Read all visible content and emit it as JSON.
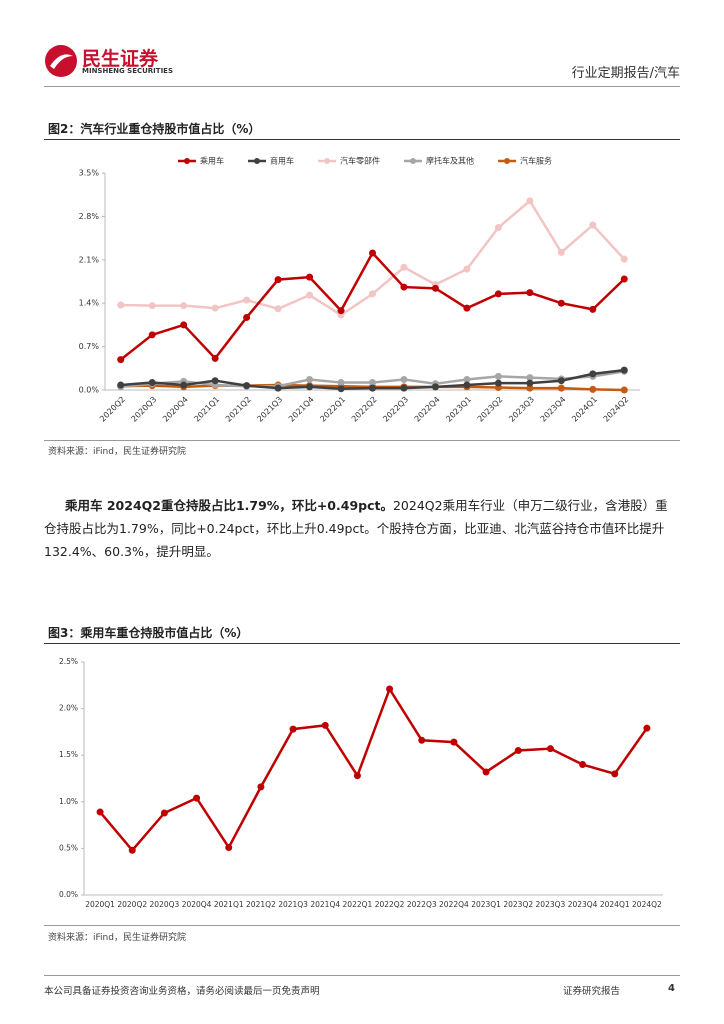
{
  "header": {
    "brand": "民生证券",
    "brand_en": "MINSHENG SECURITIES",
    "report_type": "行业定期报告/汽车"
  },
  "chart_data": [
    {
      "type": "line",
      "title": "图2：汽车行业重仓持股市值占比（%）",
      "source": "资料来源：iFind，民生证券研究院",
      "categories": [
        "2020Q2",
        "2020Q3",
        "2020Q4",
        "2021Q1",
        "2021Q2",
        "2021Q3",
        "2021Q4",
        "2022Q1",
        "2022Q2",
        "2022Q3",
        "2022Q4",
        "2023Q1",
        "2023Q2",
        "2023Q3",
        "2023Q4",
        "2024Q1",
        "2024Q2"
      ],
      "series": [
        {
          "name": "乘用车",
          "color": "#c00000",
          "values": [
            0.49,
            0.89,
            1.05,
            0.51,
            1.17,
            1.78,
            1.82,
            1.28,
            2.21,
            1.66,
            1.64,
            1.32,
            1.55,
            1.57,
            1.4,
            1.3,
            1.79
          ]
        },
        {
          "name": "商用车",
          "color": "#404040",
          "values": [
            0.08,
            0.12,
            0.08,
            0.15,
            0.07,
            0.03,
            0.05,
            0.02,
            0.03,
            0.03,
            0.05,
            0.08,
            0.11,
            0.11,
            0.15,
            0.26,
            0.32
          ]
        },
        {
          "name": "汽车零部件",
          "color": "#f2c4c4",
          "values": [
            1.37,
            1.36,
            1.36,
            1.32,
            1.45,
            1.31,
            1.53,
            1.21,
            1.55,
            1.98,
            1.7,
            1.95,
            2.62,
            3.05,
            2.22,
            2.66,
            2.11
          ]
        },
        {
          "name": "摩托车及其他",
          "color": "#a6a6a6",
          "values": [
            0.05,
            0.1,
            0.14,
            0.08,
            0.06,
            0.06,
            0.17,
            0.12,
            0.12,
            0.17,
            0.1,
            0.17,
            0.22,
            0.2,
            0.18,
            0.22,
            0.3
          ]
        },
        {
          "name": "汽车服务",
          "color": "#c55a11",
          "values": [
            0.06,
            0.07,
            0.05,
            0.07,
            0.07,
            0.08,
            0.07,
            0.06,
            0.05,
            0.05,
            0.05,
            0.05,
            0.04,
            0.03,
            0.03,
            0.01,
            0.0
          ]
        }
      ],
      "ylim": [
        0,
        3.5
      ],
      "yticks": [
        {
          "value": 0,
          "label": "0.0%"
        },
        {
          "value": 0.7,
          "label": "0.7%"
        },
        {
          "value": 1.4,
          "label": "1.4%"
        },
        {
          "value": 2.1,
          "label": "2.1%"
        },
        {
          "value": 2.8,
          "label": "2.8%"
        },
        {
          "value": 3.5,
          "label": "3.5%"
        }
      ],
      "grid": false,
      "legend": "top"
    },
    {
      "type": "line",
      "title": "图3：乘用车重仓持股市值占比（%）",
      "source": "资料来源：iFind，民生证券研究院",
      "categories": [
        "2020Q1",
        "2020Q2",
        "2020Q3",
        "2020Q4",
        "2021Q1",
        "2021Q2",
        "2021Q3",
        "2021Q4",
        "2022Q1",
        "2022Q2",
        "2022Q3",
        "2022Q4",
        "2023Q1",
        "2023Q2",
        "2023Q3",
        "2023Q4",
        "2024Q1",
        "2024Q2"
      ],
      "values": [
        0.89,
        0.48,
        0.88,
        1.04,
        0.51,
        1.16,
        1.78,
        1.82,
        1.28,
        2.21,
        1.66,
        1.64,
        1.32,
        1.55,
        1.57,
        1.4,
        1.3,
        1.79
      ],
      "color": "#c00000",
      "ylim": [
        0,
        2.5
      ],
      "yticks": [
        {
          "value": 0,
          "label": "0.0%"
        },
        {
          "value": 0.5,
          "label": "0.5%"
        },
        {
          "value": 1,
          "label": "1.0%"
        },
        {
          "value": 1.5,
          "label": "1.5%"
        },
        {
          "value": 2,
          "label": "2.0%"
        },
        {
          "value": 2.5,
          "label": "2.5%"
        }
      ],
      "grid": false
    }
  ],
  "paragraph": {
    "lead": "乘用车 2024Q2重仓持股占比1.79%，环比+0.49pct。",
    "body": "2024Q2乘用车行业（申万二级行业，含港股）重仓持股占比为1.79%，同比+0.24pct，环比上升0.49pct。个股持仓方面，比亚迪、北汽蓝谷持仓市值环比提升132.4%、60.3%，提升明显。"
  },
  "footer": {
    "disclaimer": "本公司具备证券投资咨询业务资格，请务必阅读最后一页免责声明",
    "label": "证券研究报告",
    "page": "4"
  }
}
